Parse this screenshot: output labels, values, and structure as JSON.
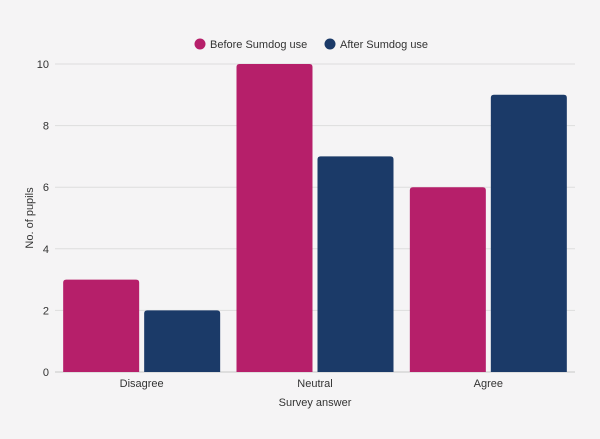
{
  "chart_data": {
    "type": "bar",
    "title": "",
    "xlabel": "Survey answer",
    "ylabel": "No. of pupils",
    "categories": [
      "Disagree",
      "Neutral",
      "Agree"
    ],
    "series": [
      {
        "name": "Before Sumdog use",
        "color": "#b61f6a",
        "values": [
          3,
          10,
          6
        ]
      },
      {
        "name": "After Sumdog use",
        "color": "#1b3a68",
        "values": [
          2,
          7,
          9
        ]
      }
    ],
    "ylim": [
      0,
      10
    ],
    "yticks": [
      0,
      2,
      4,
      6,
      8,
      10
    ],
    "grid": true,
    "legend_position": "top-center"
  }
}
